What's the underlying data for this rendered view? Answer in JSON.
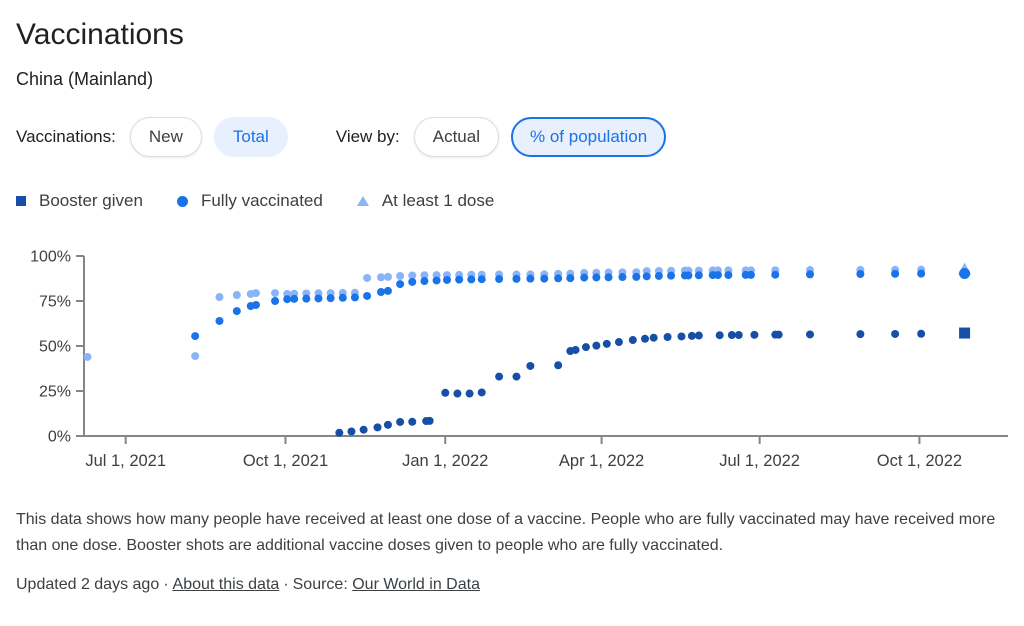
{
  "page": {
    "title": "Vaccinations",
    "subtitle": "China (Mainland)"
  },
  "filters": {
    "group1_label": "Vaccinations:",
    "group1": [
      {
        "label": "New",
        "selected": false
      },
      {
        "label": "Total",
        "selected": true
      }
    ],
    "group2_label": "View by:",
    "group2": [
      {
        "label": "Actual",
        "selected": false
      },
      {
        "label": "% of population",
        "selected": true
      }
    ]
  },
  "legend": [
    {
      "label": "Booster given",
      "marker": "square",
      "color": "#174ea6"
    },
    {
      "label": "Fully vaccinated",
      "marker": "circle",
      "color": "#1a73e8"
    },
    {
      "label": "At least 1 dose",
      "marker": "triangle",
      "color": "#8ab4f8"
    }
  ],
  "colors": {
    "accent": "#1a73e8",
    "chip_selected_bg": "#e8f0fe",
    "axis": "#80868b",
    "tick_label": "#3c4043"
  },
  "chart_data": {
    "type": "scatter",
    "title": "",
    "xlabel": "",
    "ylabel": "",
    "grid": false,
    "x_domain": [
      "2021-06-07",
      "2022-11-21"
    ],
    "ylim": [
      0,
      100
    ],
    "y_ticks": [
      {
        "value": 0,
        "label": "0%"
      },
      {
        "value": 25,
        "label": "25%"
      },
      {
        "value": 50,
        "label": "50%"
      },
      {
        "value": 75,
        "label": "75%"
      },
      {
        "value": 100,
        "label": "100%"
      }
    ],
    "x_ticks": [
      {
        "date": "2021-07-01",
        "label": "Jul 1, 2021"
      },
      {
        "date": "2021-10-01",
        "label": "Oct 1, 2021"
      },
      {
        "date": "2022-01-01",
        "label": "Jan 1, 2022"
      },
      {
        "date": "2022-04-01",
        "label": "Apr 1, 2022"
      },
      {
        "date": "2022-07-01",
        "label": "Jul 1, 2022"
      },
      {
        "date": "2022-10-01",
        "label": "Oct 1, 2022"
      }
    ],
    "series": [
      {
        "name": "Booster given",
        "marker": "square",
        "color": "#174ea6",
        "points": [
          {
            "date": "2021-11-01",
            "value": 1.8
          },
          {
            "date": "2021-11-08",
            "value": 2.5
          },
          {
            "date": "2021-11-15",
            "value": 3.5
          },
          {
            "date": "2021-11-23",
            "value": 4.8
          },
          {
            "date": "2021-11-29",
            "value": 6.2
          },
          {
            "date": "2021-12-06",
            "value": 7.8
          },
          {
            "date": "2021-12-13",
            "value": 7.9
          },
          {
            "date": "2021-12-21",
            "value": 8.3
          },
          {
            "date": "2021-12-23",
            "value": 8.4
          },
          {
            "date": "2022-01-01",
            "value": 24.0
          },
          {
            "date": "2022-01-08",
            "value": 23.6
          },
          {
            "date": "2022-01-15",
            "value": 23.6
          },
          {
            "date": "2022-01-22",
            "value": 24.2
          },
          {
            "date": "2022-02-01",
            "value": 33.0
          },
          {
            "date": "2022-02-11",
            "value": 33.0
          },
          {
            "date": "2022-02-19",
            "value": 38.9
          },
          {
            "date": "2022-03-07",
            "value": 39.3
          },
          {
            "date": "2022-03-14",
            "value": 47.2
          },
          {
            "date": "2022-03-17",
            "value": 47.8
          },
          {
            "date": "2022-03-23",
            "value": 49.4
          },
          {
            "date": "2022-03-29",
            "value": 50.2
          },
          {
            "date": "2022-04-04",
            "value": 51.2
          },
          {
            "date": "2022-04-11",
            "value": 52.2
          },
          {
            "date": "2022-04-19",
            "value": 53.3
          },
          {
            "date": "2022-04-26",
            "value": 54.0
          },
          {
            "date": "2022-05-01",
            "value": 54.6
          },
          {
            "date": "2022-05-09",
            "value": 55.0
          },
          {
            "date": "2022-05-17",
            "value": 55.3
          },
          {
            "date": "2022-05-23",
            "value": 55.6
          },
          {
            "date": "2022-05-27",
            "value": 55.8
          },
          {
            "date": "2022-06-08",
            "value": 56.0
          },
          {
            "date": "2022-06-15",
            "value": 56.1
          },
          {
            "date": "2022-06-19",
            "value": 56.1
          },
          {
            "date": "2022-06-28",
            "value": 56.2
          },
          {
            "date": "2022-07-10",
            "value": 56.3
          },
          {
            "date": "2022-07-12",
            "value": 56.3
          },
          {
            "date": "2022-07-30",
            "value": 56.4
          },
          {
            "date": "2022-08-28",
            "value": 56.6
          },
          {
            "date": "2022-09-17",
            "value": 56.7
          },
          {
            "date": "2022-10-02",
            "value": 56.8
          },
          {
            "date": "2022-10-27",
            "value": 57.2,
            "last": true
          }
        ]
      },
      {
        "name": "Fully vaccinated",
        "marker": "circle",
        "color": "#1a73e8",
        "points": [
          {
            "date": "2021-08-10",
            "value": 55.5
          },
          {
            "date": "2021-08-24",
            "value": 63.9
          },
          {
            "date": "2021-09-03",
            "value": 69.4
          },
          {
            "date": "2021-09-11",
            "value": 72.2
          },
          {
            "date": "2021-09-14",
            "value": 72.8
          },
          {
            "date": "2021-09-25",
            "value": 75.0
          },
          {
            "date": "2021-10-02",
            "value": 76.0
          },
          {
            "date": "2021-10-06",
            "value": 76.2
          },
          {
            "date": "2021-10-13",
            "value": 76.3
          },
          {
            "date": "2021-10-20",
            "value": 76.4
          },
          {
            "date": "2021-10-27",
            "value": 76.6
          },
          {
            "date": "2021-11-03",
            "value": 76.8
          },
          {
            "date": "2021-11-10",
            "value": 77.0
          },
          {
            "date": "2021-11-17",
            "value": 77.8
          },
          {
            "date": "2021-11-25",
            "value": 80.0
          },
          {
            "date": "2021-11-29",
            "value": 80.6
          },
          {
            "date": "2021-12-06",
            "value": 84.4
          },
          {
            "date": "2021-12-13",
            "value": 85.6
          },
          {
            "date": "2021-12-20",
            "value": 86.1
          },
          {
            "date": "2021-12-27",
            "value": 86.4
          },
          {
            "date": "2022-01-02",
            "value": 86.7
          },
          {
            "date": "2022-01-09",
            "value": 86.9
          },
          {
            "date": "2022-01-16",
            "value": 87.0
          },
          {
            "date": "2022-01-22",
            "value": 87.1
          },
          {
            "date": "2022-02-01",
            "value": 87.2
          },
          {
            "date": "2022-02-11",
            "value": 87.3
          },
          {
            "date": "2022-02-19",
            "value": 87.4
          },
          {
            "date": "2022-02-27",
            "value": 87.4
          },
          {
            "date": "2022-03-07",
            "value": 87.6
          },
          {
            "date": "2022-03-14",
            "value": 87.7
          },
          {
            "date": "2022-03-22",
            "value": 88.0
          },
          {
            "date": "2022-03-29",
            "value": 88.1
          },
          {
            "date": "2022-04-05",
            "value": 88.2
          },
          {
            "date": "2022-04-13",
            "value": 88.3
          },
          {
            "date": "2022-04-21",
            "value": 88.4
          },
          {
            "date": "2022-04-27",
            "value": 88.7
          },
          {
            "date": "2022-05-04",
            "value": 88.9
          },
          {
            "date": "2022-05-11",
            "value": 89.1
          },
          {
            "date": "2022-05-19",
            "value": 89.2
          },
          {
            "date": "2022-05-21",
            "value": 89.2
          },
          {
            "date": "2022-05-27",
            "value": 89.3
          },
          {
            "date": "2022-06-04",
            "value": 89.4
          },
          {
            "date": "2022-06-07",
            "value": 89.4
          },
          {
            "date": "2022-06-13",
            "value": 89.4
          },
          {
            "date": "2022-06-23",
            "value": 89.5
          },
          {
            "date": "2022-06-26",
            "value": 89.5
          },
          {
            "date": "2022-07-10",
            "value": 89.6
          },
          {
            "date": "2022-07-30",
            "value": 89.8
          },
          {
            "date": "2022-08-28",
            "value": 90.0
          },
          {
            "date": "2022-09-17",
            "value": 90.1
          },
          {
            "date": "2022-10-02",
            "value": 90.2
          },
          {
            "date": "2022-10-27",
            "value": 90.3,
            "last": true
          }
        ]
      },
      {
        "name": "At least 1 dose",
        "marker": "triangle",
        "color": "#8ab4f8",
        "points": [
          {
            "date": "2021-06-09",
            "value": 43.9
          },
          {
            "date": "2021-08-10",
            "value": 44.4
          },
          {
            "date": "2021-08-24",
            "value": 77.2
          },
          {
            "date": "2021-09-03",
            "value": 78.3
          },
          {
            "date": "2021-09-11",
            "value": 78.9
          },
          {
            "date": "2021-09-14",
            "value": 79.4
          },
          {
            "date": "2021-09-25",
            "value": 79.4
          },
          {
            "date": "2021-10-02",
            "value": 78.9
          },
          {
            "date": "2021-10-06",
            "value": 79.0
          },
          {
            "date": "2021-10-13",
            "value": 79.2
          },
          {
            "date": "2021-10-20",
            "value": 79.3
          },
          {
            "date": "2021-10-27",
            "value": 79.4
          },
          {
            "date": "2021-11-03",
            "value": 79.5
          },
          {
            "date": "2021-11-10",
            "value": 79.6
          },
          {
            "date": "2021-11-17",
            "value": 87.8
          },
          {
            "date": "2021-11-25",
            "value": 88.2
          },
          {
            "date": "2021-11-29",
            "value": 88.4
          },
          {
            "date": "2021-12-06",
            "value": 88.9
          },
          {
            "date": "2021-12-13",
            "value": 89.2
          },
          {
            "date": "2021-12-20",
            "value": 89.3
          },
          {
            "date": "2021-12-27",
            "value": 89.4
          },
          {
            "date": "2022-01-02",
            "value": 89.4
          },
          {
            "date": "2022-01-09",
            "value": 89.5
          },
          {
            "date": "2022-01-16",
            "value": 89.6
          },
          {
            "date": "2022-01-22",
            "value": 89.6
          },
          {
            "date": "2022-02-01",
            "value": 89.7
          },
          {
            "date": "2022-02-11",
            "value": 89.7
          },
          {
            "date": "2022-02-19",
            "value": 89.8
          },
          {
            "date": "2022-02-27",
            "value": 89.8
          },
          {
            "date": "2022-03-07",
            "value": 90.1
          },
          {
            "date": "2022-03-14",
            "value": 90.2
          },
          {
            "date": "2022-03-22",
            "value": 90.6
          },
          {
            "date": "2022-03-29",
            "value": 90.7
          },
          {
            "date": "2022-04-05",
            "value": 90.8
          },
          {
            "date": "2022-04-13",
            "value": 90.9
          },
          {
            "date": "2022-04-21",
            "value": 91.0
          },
          {
            "date": "2022-04-27",
            "value": 91.6
          },
          {
            "date": "2022-05-04",
            "value": 91.7
          },
          {
            "date": "2022-05-11",
            "value": 91.8
          },
          {
            "date": "2022-05-19",
            "value": 91.9
          },
          {
            "date": "2022-05-21",
            "value": 91.9
          },
          {
            "date": "2022-05-27",
            "value": 91.9
          },
          {
            "date": "2022-06-04",
            "value": 92.0
          },
          {
            "date": "2022-06-07",
            "value": 92.0
          },
          {
            "date": "2022-06-13",
            "value": 92.0
          },
          {
            "date": "2022-06-23",
            "value": 92.0
          },
          {
            "date": "2022-06-26",
            "value": 92.0
          },
          {
            "date": "2022-07-10",
            "value": 92.1
          },
          {
            "date": "2022-07-30",
            "value": 92.2
          },
          {
            "date": "2022-08-28",
            "value": 92.3
          },
          {
            "date": "2022-09-17",
            "value": 92.3
          },
          {
            "date": "2022-10-02",
            "value": 92.4
          },
          {
            "date": "2022-10-27",
            "value": 92.4,
            "last": true
          }
        ]
      }
    ]
  },
  "description": "This data shows how many people have received at least one dose of a vaccine. People who are fully vaccinated may have received more than one dose. Booster shots are additional vaccine doses given to people who are fully vaccinated.",
  "footer": {
    "updated": "Updated 2 days ago",
    "separator": "·",
    "about_link": "About this data",
    "source_label": "Source:",
    "source_link": "Our World in Data"
  }
}
